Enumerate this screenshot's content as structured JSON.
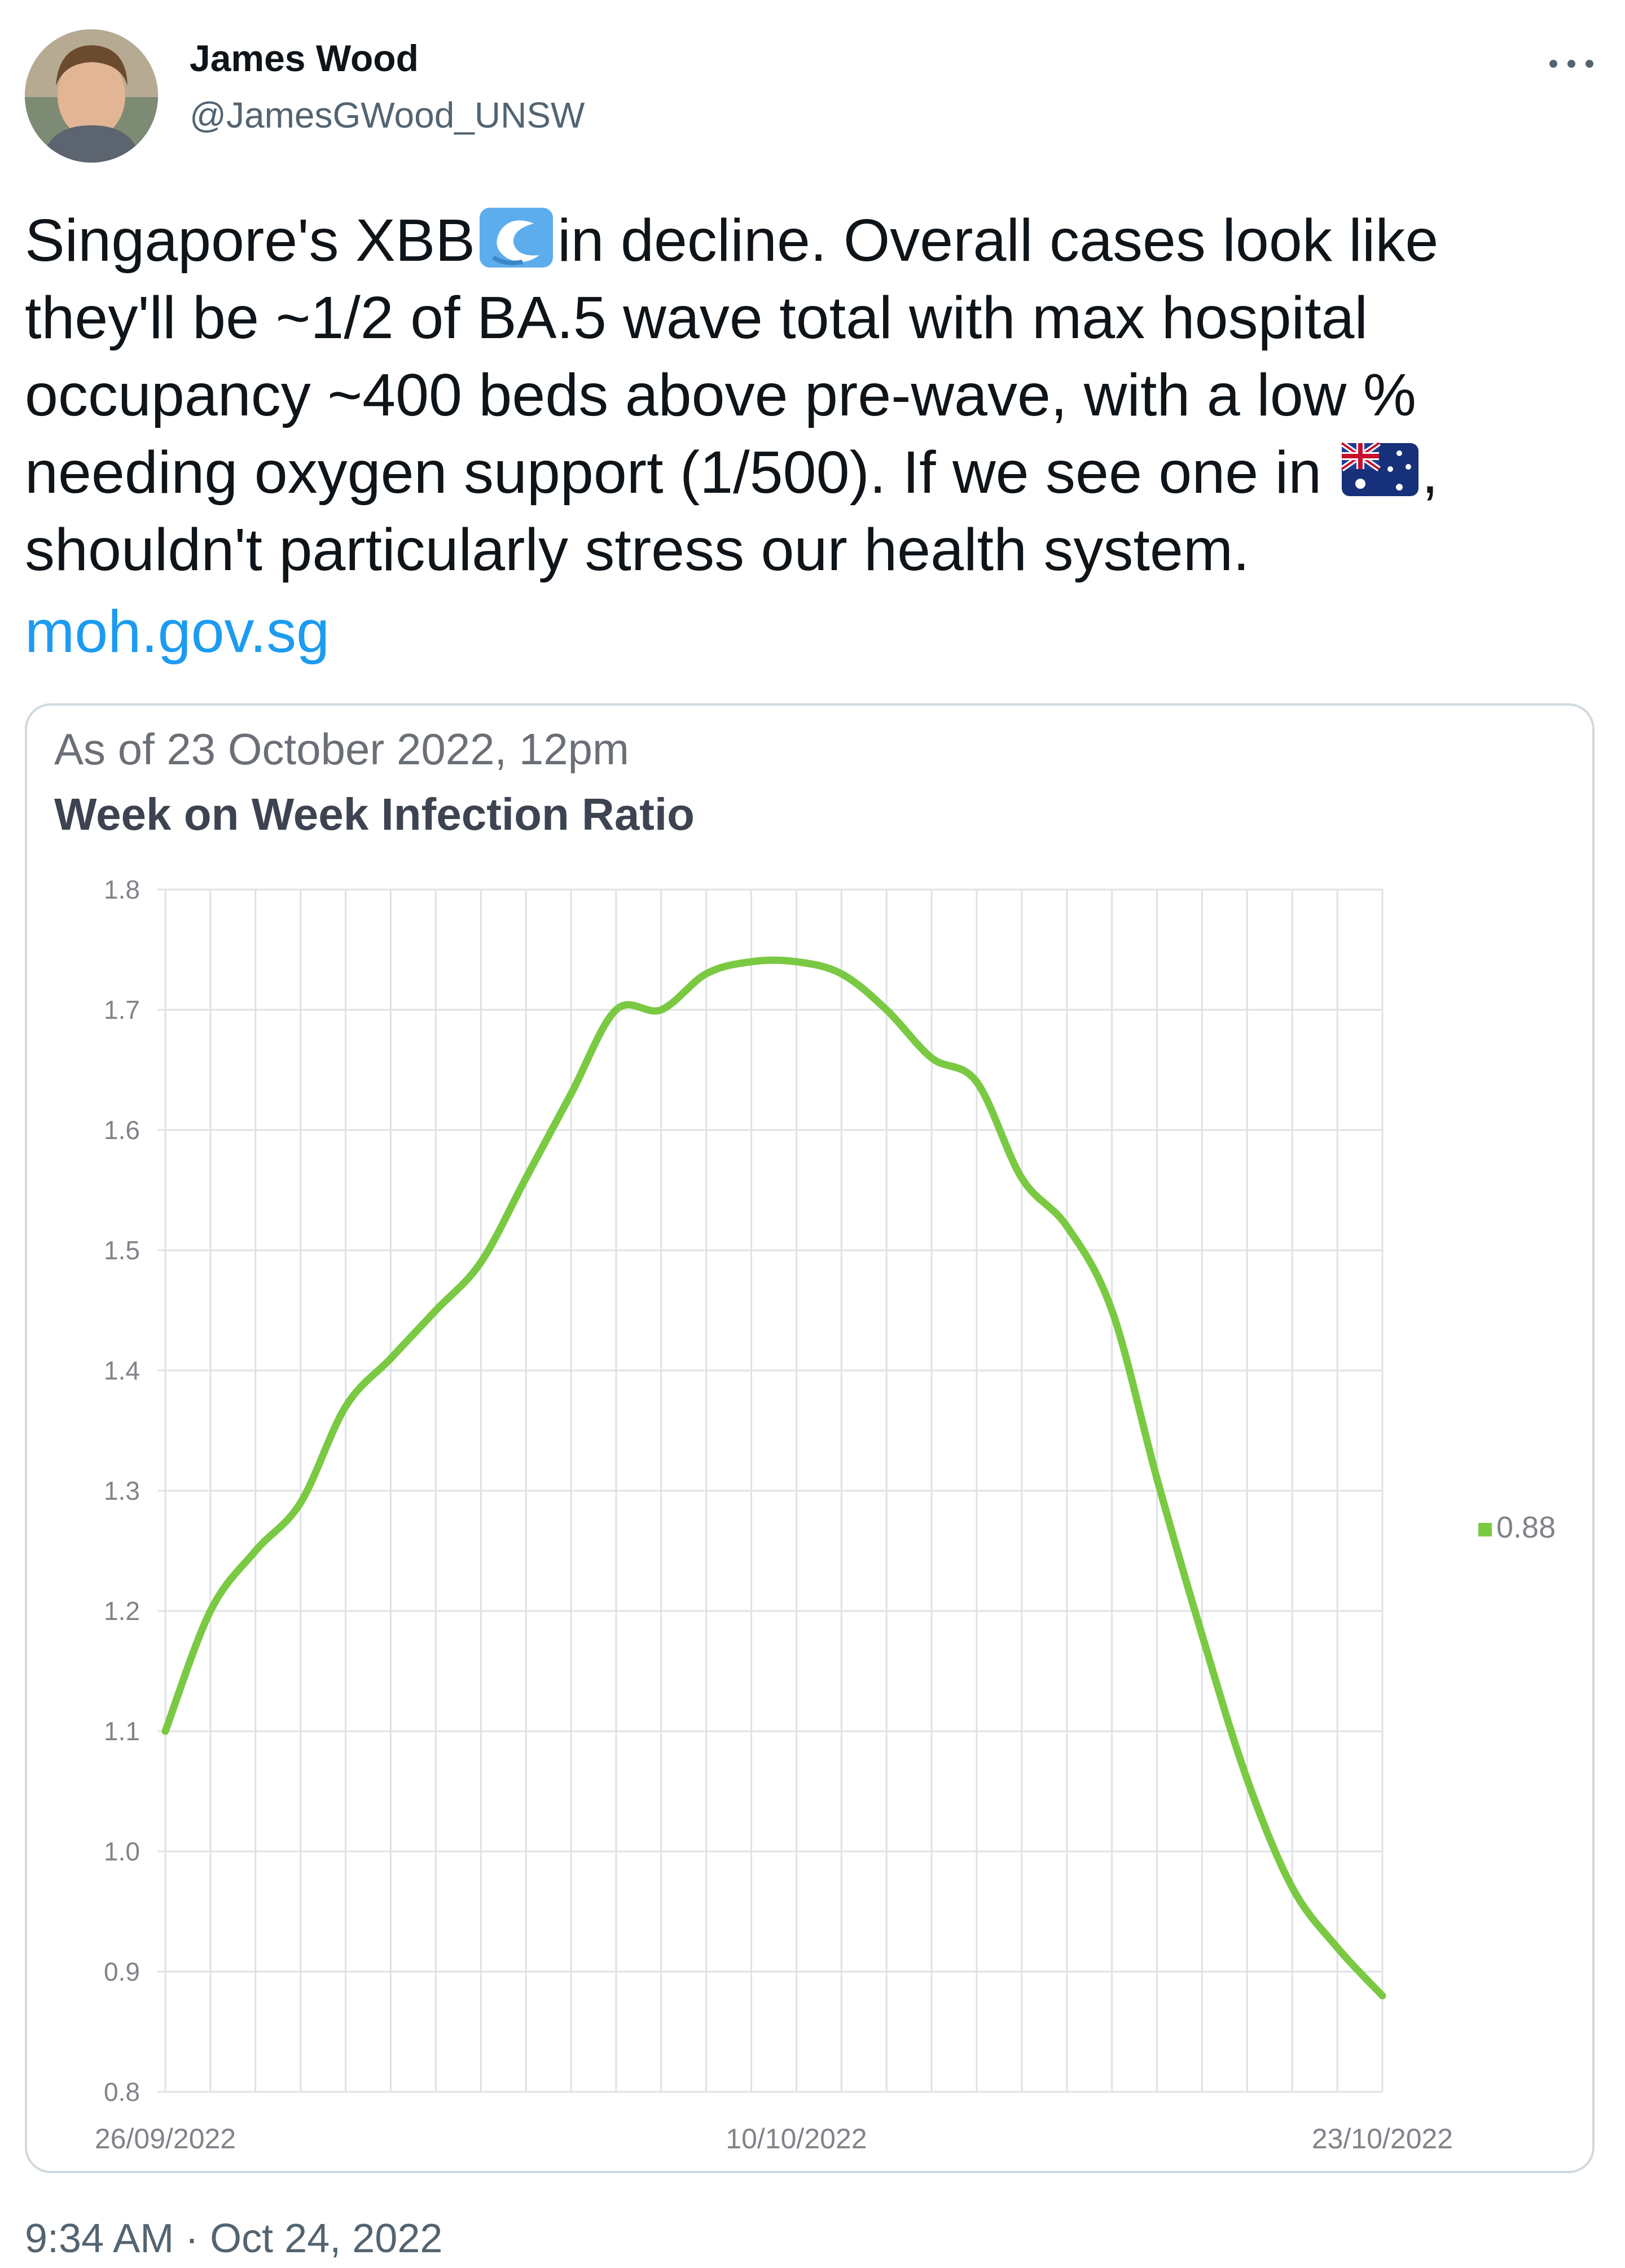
{
  "author": {
    "name": "James Wood",
    "handle": "@JamesGWood_UNSW"
  },
  "tweet": {
    "lines": [
      [
        "Singapore's XBB",
        "in decline. Overall cases look like"
      ],
      "they'll be ~1/2 of BA.5 wave total with max hospital",
      "occupancy ~400 beds above pre-wave, with a low %",
      [
        "needing oxygen support (1/500). If we see one in ",
        ","
      ],
      "shouldn't particularly stress our health system."
    ],
    "link": "moh.gov.sg",
    "timestamp": "9:34 AM · Oct 24, 2022",
    "icons": [
      "water-wave-emoji",
      "australia-flag-emoji",
      "more-options-icon"
    ]
  },
  "card": {
    "as_of": "As of 23 October 2022, 12pm",
    "title": "Week on Week Infection Ratio"
  },
  "chart_data": {
    "type": "line",
    "title": "Week on Week Infection Ratio",
    "xlabel": "",
    "ylabel": "",
    "ylim": [
      0.8,
      1.8
    ],
    "yticks": [
      0.8,
      0.9,
      1.0,
      1.1,
      1.2,
      1.3,
      1.4,
      1.5,
      1.6,
      1.7,
      1.8
    ],
    "xticks": [
      "26/09/2022",
      "10/10/2022",
      "23/10/2022"
    ],
    "grid": true,
    "legend": "right",
    "color": "#7ac943",
    "series": [
      {
        "name": "0.88",
        "x": [
          "26/09/2022",
          "27/09/2022",
          "28/09/2022",
          "29/09/2022",
          "30/09/2022",
          "01/10/2022",
          "02/10/2022",
          "03/10/2022",
          "04/10/2022",
          "05/10/2022",
          "06/10/2022",
          "07/10/2022",
          "08/10/2022",
          "09/10/2022",
          "10/10/2022",
          "11/10/2022",
          "12/10/2022",
          "13/10/2022",
          "14/10/2022",
          "15/10/2022",
          "16/10/2022",
          "17/10/2022",
          "18/10/2022",
          "19/10/2022",
          "20/10/2022",
          "21/10/2022",
          "22/10/2022",
          "23/10/2022"
        ],
        "values": [
          1.1,
          1.2,
          1.25,
          1.29,
          1.37,
          1.41,
          1.45,
          1.49,
          1.56,
          1.63,
          1.7,
          1.7,
          1.73,
          1.74,
          1.74,
          1.73,
          1.7,
          1.66,
          1.64,
          1.56,
          1.52,
          1.45,
          1.31,
          1.18,
          1.06,
          0.97,
          0.92,
          0.88
        ]
      }
    ]
  }
}
